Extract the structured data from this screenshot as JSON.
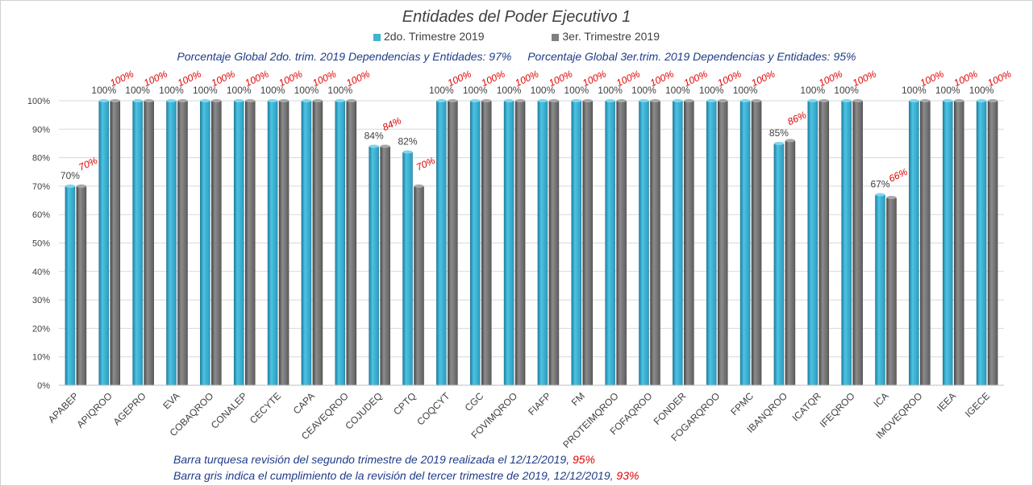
{
  "chart_data": {
    "type": "bar",
    "title": "Entidades del Poder Ejecutivo 1",
    "categories": [
      "APABEP",
      "APIQROO",
      "AGEPRO",
      "EVA",
      "COBAQROO",
      "CONALEP",
      "CECYTE",
      "CAPA",
      "CEAVEQROO",
      "COJUDEQ",
      "CPTQ",
      "COQCYT",
      "CGC",
      "FOVIMQROO",
      "FIAFP",
      "FM",
      "PROTEIMQROO",
      "FOFAQROO",
      "FONDER",
      "FOGARQROO",
      "FPMC",
      "IBANQROO",
      "ICATQR",
      "IFEQROO",
      "ICA",
      "IMOVEQROO",
      "IEEA",
      "IGECE"
    ],
    "series": [
      {
        "name": "2do. Trimestre 2019",
        "color": "#3fb4d4",
        "values": [
          70,
          100,
          100,
          100,
          100,
          100,
          100,
          100,
          100,
          84,
          82,
          100,
          100,
          100,
          100,
          100,
          100,
          100,
          100,
          100,
          100,
          85,
          100,
          100,
          67,
          100,
          100,
          100
        ]
      },
      {
        "name": "3er. Trimestre 2019",
        "color": "#808080",
        "values": [
          70,
          100,
          100,
          100,
          100,
          100,
          100,
          100,
          100,
          84,
          70,
          100,
          100,
          100,
          100,
          100,
          100,
          100,
          100,
          100,
          100,
          86,
          100,
          100,
          66,
          100,
          100,
          100
        ]
      }
    ],
    "ylim": [
      0,
      100
    ],
    "yticks": [
      "0%",
      "10%",
      "20%",
      "30%",
      "40%",
      "50%",
      "60%",
      "70%",
      "80%",
      "90%",
      "100%"
    ],
    "data_labels_series1": [
      "70%",
      "100%",
      "100%",
      "100%",
      "100%",
      "100%",
      "100%",
      "100%",
      "100%",
      "84%",
      "82%",
      "100%",
      "100%",
      "100%",
      "100%",
      "100%",
      "100%",
      "100%",
      "100%",
      "100%",
      "100%",
      "85%",
      "100%",
      "100%",
      "67%",
      "100%",
      "100%",
      "100%"
    ],
    "data_labels_series2": [
      "70%",
      "100%",
      "100%",
      "100%",
      "100%",
      "100%",
      "100%",
      "100%",
      "100%",
      "84%",
      "70%",
      "100%",
      "100%",
      "100%",
      "100%",
      "100%",
      "100%",
      "100%",
      "100%",
      "100%",
      "100%",
      "86%",
      "100%",
      "100%",
      "66%",
      "100%",
      "100%",
      "100%"
    ],
    "grid": true,
    "legend": "top-center"
  },
  "global_text": {
    "q2": "Porcentaje Global 2do. trim.  2019 Dependencias y Entidades: 97%",
    "q3": "Porcentaje Global  3er.trim.  2019 Dependencias y Entidades: 95%"
  },
  "notes": {
    "line1_text": "Barra turquesa  revisión  del  segundo  trimestre  de  2019  realizada  el   12/12/2019,",
    "line1_value": "95%",
    "line2_text": "Barra gris  indica  el  cumplimiento  de  la  revisión  del  tercer  trimestre  de  2019,   12/12/2019,",
    "line2_value": "93%"
  },
  "colors": {
    "label_red": "#e00000",
    "text_blue": "#1f3c88",
    "grid": "#d9d9d9"
  }
}
